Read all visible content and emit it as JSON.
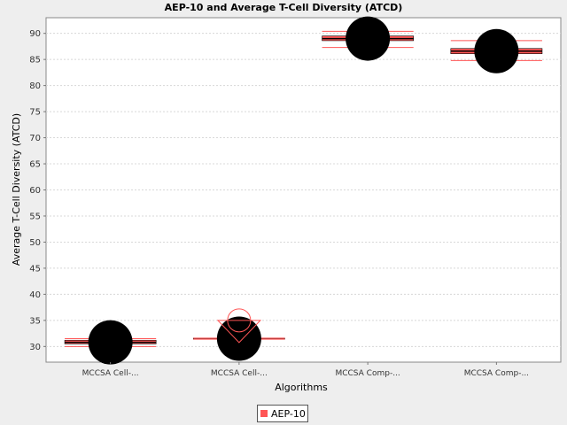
{
  "chart_data": {
    "type": "box",
    "title": "AEP-10 and Average T-Cell Diversity (ATCD)",
    "xlabel": "Algorithms",
    "ylabel": "Average T-Cell Diversity (ATCD)",
    "ylim": [
      27,
      93
    ],
    "yticks": [
      30,
      35,
      40,
      45,
      50,
      55,
      60,
      65,
      70,
      75,
      80,
      85,
      90
    ],
    "grid": true,
    "legend_position": "bottom",
    "categories": [
      "MCCSA Cell-...",
      "MCCSA Cell-...",
      "MCCSA Comp-...",
      "MCCSA Comp-..."
    ],
    "series": [
      {
        "name": "AEP-10",
        "color": "#ff5555",
        "boxes": [
          {
            "min": 30.0,
            "q1": 30.5,
            "median": 30.8,
            "q3": 31.2,
            "max": 31.5,
            "mean": 30.8,
            "outliers_high": []
          },
          {
            "min": 31.4,
            "q1": 31.4,
            "median": 31.5,
            "q3": 31.6,
            "max": 31.6,
            "mean": 31.5,
            "outliers_high": [
              35.0
            ]
          },
          {
            "min": 87.3,
            "q1": 88.6,
            "median": 89.0,
            "q3": 89.5,
            "max": 90.4,
            "mean": 89.0,
            "outliers_high": []
          },
          {
            "min": 84.8,
            "q1": 86.1,
            "median": 86.6,
            "q3": 87.1,
            "max": 88.6,
            "mean": 86.6,
            "outliers_high": []
          }
        ]
      }
    ]
  },
  "legend": {
    "label": "AEP-10"
  }
}
